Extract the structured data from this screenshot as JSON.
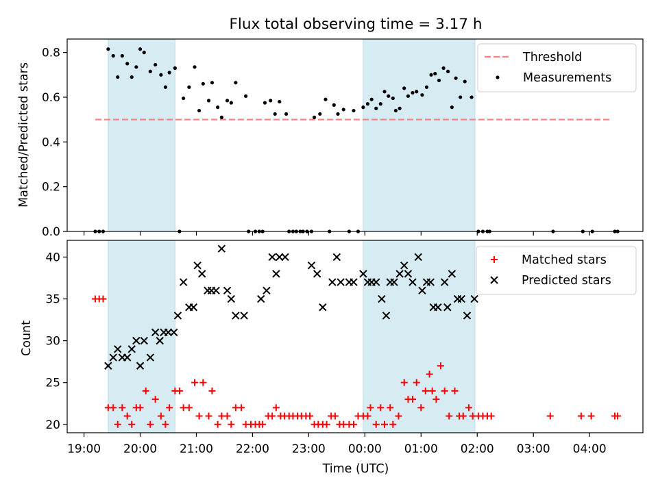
{
  "chart_data": [
    {
      "type": "scatter",
      "title": "Flux total observing time = 3.17 h",
      "xlabel": "",
      "ylabel": "Matched/Predicted stars",
      "xlim_hours": [
        18.7,
        28.95
      ],
      "ylim": [
        0,
        0.86
      ],
      "yticks": [
        "0.0",
        "0.2",
        "0.4",
        "0.6",
        "0.8"
      ],
      "shaded_intervals": [
        [
          19.43,
          20.62
        ],
        [
          23.97,
          25.96
        ]
      ],
      "threshold": {
        "name": "Threshold",
        "value": 0.5,
        "x": [
          19.2,
          28.4
        ],
        "color": "#ff8080"
      },
      "legend": {
        "position": "upper right",
        "entries": [
          "Threshold",
          "Measurements"
        ]
      },
      "series": [
        {
          "name": "Measurements",
          "color": "#000000",
          "points": [
            [
              19.2,
              0
            ],
            [
              19.27,
              0
            ],
            [
              19.34,
              0
            ],
            [
              19.43,
              0.815
            ],
            [
              19.52,
              0.785
            ],
            [
              19.6,
              0.69
            ],
            [
              19.68,
              0.785
            ],
            [
              19.77,
              0.75
            ],
            [
              19.85,
              0.69
            ],
            [
              19.93,
              0.735
            ],
            [
              20.0,
              0.815
            ],
            [
              20.07,
              0.8
            ],
            [
              20.18,
              0.715
            ],
            [
              20.27,
              0.745
            ],
            [
              20.37,
              0.7
            ],
            [
              20.45,
              0.645
            ],
            [
              20.52,
              0.71
            ],
            [
              20.62,
              0.73
            ],
            [
              20.7,
              0
            ],
            [
              20.77,
              0.595
            ],
            [
              20.87,
              0.645
            ],
            [
              20.97,
              0.735
            ],
            [
              21.05,
              0.54
            ],
            [
              21.12,
              0.66
            ],
            [
              21.22,
              0.585
            ],
            [
              21.28,
              0.665
            ],
            [
              21.38,
              0.555
            ],
            [
              21.45,
              0.51
            ],
            [
              21.55,
              0.585
            ],
            [
              21.62,
              0.575
            ],
            [
              21.7,
              0.665
            ],
            [
              21.88,
              0.605
            ],
            [
              21.93,
              0
            ],
            [
              22.05,
              0
            ],
            [
              22.12,
              0
            ],
            [
              22.18,
              0
            ],
            [
              22.22,
              0.575
            ],
            [
              22.32,
              0.585
            ],
            [
              22.4,
              0.525
            ],
            [
              22.48,
              0.58
            ],
            [
              22.6,
              0.525
            ],
            [
              22.65,
              0
            ],
            [
              22.72,
              0
            ],
            [
              22.78,
              0
            ],
            [
              22.85,
              0
            ],
            [
              22.9,
              0
            ],
            [
              22.97,
              0
            ],
            [
              23.05,
              0
            ],
            [
              23.1,
              0.51
            ],
            [
              23.2,
              0.525
            ],
            [
              23.3,
              0.59
            ],
            [
              23.37,
              0
            ],
            [
              23.45,
              0.565
            ],
            [
              23.52,
              0.525
            ],
            [
              23.62,
              0.545
            ],
            [
              23.72,
              0
            ],
            [
              23.8,
              0.54
            ],
            [
              23.88,
              0
            ],
            [
              23.97,
              0.555
            ],
            [
              24.05,
              0.57
            ],
            [
              24.12,
              0.59
            ],
            [
              24.2,
              0.55
            ],
            [
              24.28,
              0.57
            ],
            [
              24.35,
              0.625
            ],
            [
              24.42,
              0.605
            ],
            [
              24.5,
              0.595
            ],
            [
              24.55,
              0.54
            ],
            [
              24.62,
              0.55
            ],
            [
              24.7,
              0.64
            ],
            [
              24.77,
              0.605
            ],
            [
              24.85,
              0.62
            ],
            [
              24.92,
              0.625
            ],
            [
              25.02,
              0.61
            ],
            [
              25.1,
              0.645
            ],
            [
              25.18,
              0.7
            ],
            [
              25.25,
              0.705
            ],
            [
              25.32,
              0.675
            ],
            [
              25.4,
              0.73
            ],
            [
              25.48,
              0.715
            ],
            [
              25.55,
              0.555
            ],
            [
              25.62,
              0.685
            ],
            [
              25.7,
              0.6
            ],
            [
              25.78,
              0.67
            ],
            [
              25.9,
              0.6
            ],
            [
              26.02,
              0
            ],
            [
              26.1,
              0
            ],
            [
              26.18,
              0
            ],
            [
              26.22,
              0
            ],
            [
              27.35,
              0
            ],
            [
              27.88,
              0
            ],
            [
              28.05,
              0
            ],
            [
              28.45,
              0
            ],
            [
              28.5,
              0
            ]
          ]
        }
      ]
    },
    {
      "type": "scatter",
      "title": "",
      "xlabel": "Time (UTC)",
      "ylabel": "Count",
      "xlim_hours": [
        18.7,
        28.95
      ],
      "ylim": [
        19,
        42
      ],
      "yticks": [
        "20",
        "25",
        "30",
        "35",
        "40"
      ],
      "xticks": [
        "19:00",
        "20:00",
        "21:00",
        "22:00",
        "23:00",
        "00:00",
        "01:00",
        "02:00",
        "03:00",
        "04:00"
      ],
      "shaded_intervals": [
        [
          19.43,
          20.62
        ],
        [
          23.97,
          25.96
        ]
      ],
      "legend": {
        "position": "upper right",
        "entries": [
          "Matched stars",
          "Predicted stars"
        ]
      },
      "series": [
        {
          "name": "Matched stars",
          "marker": "+",
          "color": "#ff0000",
          "points": [
            [
              19.2,
              35
            ],
            [
              19.27,
              35
            ],
            [
              19.34,
              35
            ],
            [
              19.43,
              22
            ],
            [
              19.52,
              22
            ],
            [
              19.6,
              20
            ],
            [
              19.68,
              22
            ],
            [
              19.77,
              21
            ],
            [
              19.85,
              20
            ],
            [
              19.93,
              22
            ],
            [
              20.0,
              22
            ],
            [
              20.1,
              24
            ],
            [
              20.18,
              20
            ],
            [
              20.27,
              23
            ],
            [
              20.37,
              21
            ],
            [
              20.45,
              20
            ],
            [
              20.52,
              22
            ],
            [
              20.62,
              24
            ],
            [
              20.7,
              24
            ],
            [
              20.77,
              22
            ],
            [
              20.87,
              22
            ],
            [
              20.97,
              25
            ],
            [
              21.05,
              21
            ],
            [
              21.12,
              25
            ],
            [
              21.22,
              21
            ],
            [
              21.28,
              24
            ],
            [
              21.38,
              20
            ],
            [
              21.45,
              21
            ],
            [
              21.55,
              21
            ],
            [
              21.62,
              20
            ],
            [
              21.7,
              22
            ],
            [
              21.8,
              22
            ],
            [
              21.88,
              20
            ],
            [
              21.97,
              20
            ],
            [
              22.05,
              20
            ],
            [
              22.12,
              20
            ],
            [
              22.18,
              20
            ],
            [
              22.28,
              21
            ],
            [
              22.35,
              21
            ],
            [
              22.42,
              22
            ],
            [
              22.5,
              21
            ],
            [
              22.57,
              21
            ],
            [
              22.65,
              21
            ],
            [
              22.72,
              21
            ],
            [
              22.8,
              21
            ],
            [
              22.87,
              21
            ],
            [
              22.95,
              21
            ],
            [
              23.02,
              21
            ],
            [
              23.1,
              20
            ],
            [
              23.17,
              20
            ],
            [
              23.25,
              20
            ],
            [
              23.32,
              20
            ],
            [
              23.4,
              21
            ],
            [
              23.47,
              21
            ],
            [
              23.55,
              20
            ],
            [
              23.62,
              20
            ],
            [
              23.72,
              20
            ],
            [
              23.8,
              20
            ],
            [
              23.88,
              21
            ],
            [
              23.97,
              21
            ],
            [
              24.05,
              21
            ],
            [
              24.1,
              22
            ],
            [
              24.2,
              20
            ],
            [
              24.28,
              22
            ],
            [
              24.35,
              20
            ],
            [
              24.45,
              22
            ],
            [
              24.5,
              20
            ],
            [
              24.6,
              21
            ],
            [
              24.7,
              25
            ],
            [
              24.77,
              23
            ],
            [
              24.85,
              23
            ],
            [
              24.92,
              25
            ],
            [
              25.0,
              22
            ],
            [
              25.08,
              24
            ],
            [
              25.15,
              26
            ],
            [
              25.2,
              24
            ],
            [
              25.27,
              23
            ],
            [
              25.35,
              27
            ],
            [
              25.42,
              24
            ],
            [
              25.5,
              21
            ],
            [
              25.6,
              24
            ],
            [
              25.68,
              21
            ],
            [
              25.75,
              21
            ],
            [
              25.85,
              22
            ],
            [
              25.92,
              21
            ],
            [
              26.02,
              21
            ],
            [
              26.1,
              21
            ],
            [
              26.18,
              21
            ],
            [
              26.25,
              21
            ],
            [
              27.3,
              21
            ],
            [
              27.85,
              21
            ],
            [
              28.03,
              21
            ],
            [
              28.45,
              21
            ],
            [
              28.5,
              21
            ]
          ]
        },
        {
          "name": "Predicted stars",
          "marker": "x",
          "color": "#000000",
          "points": [
            [
              19.43,
              27
            ],
            [
              19.52,
              28
            ],
            [
              19.6,
              29
            ],
            [
              19.68,
              28
            ],
            [
              19.77,
              28
            ],
            [
              19.85,
              29
            ],
            [
              19.93,
              30
            ],
            [
              20.0,
              27
            ],
            [
              20.07,
              30
            ],
            [
              20.18,
              28
            ],
            [
              20.27,
              31
            ],
            [
              20.35,
              30
            ],
            [
              20.42,
              31
            ],
            [
              20.5,
              31
            ],
            [
              20.6,
              31
            ],
            [
              20.67,
              33
            ],
            [
              20.77,
              37
            ],
            [
              20.87,
              34
            ],
            [
              20.95,
              34
            ],
            [
              21.02,
              39
            ],
            [
              21.1,
              38
            ],
            [
              21.2,
              36
            ],
            [
              21.27,
              36
            ],
            [
              21.35,
              36
            ],
            [
              21.45,
              41
            ],
            [
              21.55,
              36
            ],
            [
              21.62,
              35
            ],
            [
              21.7,
              33
            ],
            [
              21.85,
              33
            ],
            [
              22.15,
              35
            ],
            [
              22.25,
              36
            ],
            [
              22.35,
              40
            ],
            [
              22.42,
              38
            ],
            [
              22.48,
              40
            ],
            [
              22.58,
              40
            ],
            [
              23.05,
              39
            ],
            [
              23.15,
              38
            ],
            [
              23.25,
              34
            ],
            [
              23.42,
              37
            ],
            [
              23.5,
              40
            ],
            [
              23.57,
              37
            ],
            [
              23.72,
              37
            ],
            [
              23.8,
              37
            ],
            [
              23.97,
              38
            ],
            [
              24.05,
              37
            ],
            [
              24.12,
              37
            ],
            [
              24.2,
              37
            ],
            [
              24.3,
              35
            ],
            [
              24.38,
              33
            ],
            [
              24.45,
              37
            ],
            [
              24.52,
              37
            ],
            [
              24.62,
              38
            ],
            [
              24.7,
              39
            ],
            [
              24.77,
              38
            ],
            [
              24.85,
              37
            ],
            [
              24.95,
              40
            ],
            [
              25.02,
              36
            ],
            [
              25.1,
              37
            ],
            [
              25.17,
              37
            ],
            [
              25.22,
              34
            ],
            [
              25.3,
              34
            ],
            [
              25.42,
              37
            ],
            [
              25.47,
              34
            ],
            [
              25.55,
              38
            ],
            [
              25.65,
              35
            ],
            [
              25.72,
              35
            ],
            [
              25.82,
              33
            ],
            [
              25.95,
              35
            ]
          ]
        }
      ]
    }
  ]
}
